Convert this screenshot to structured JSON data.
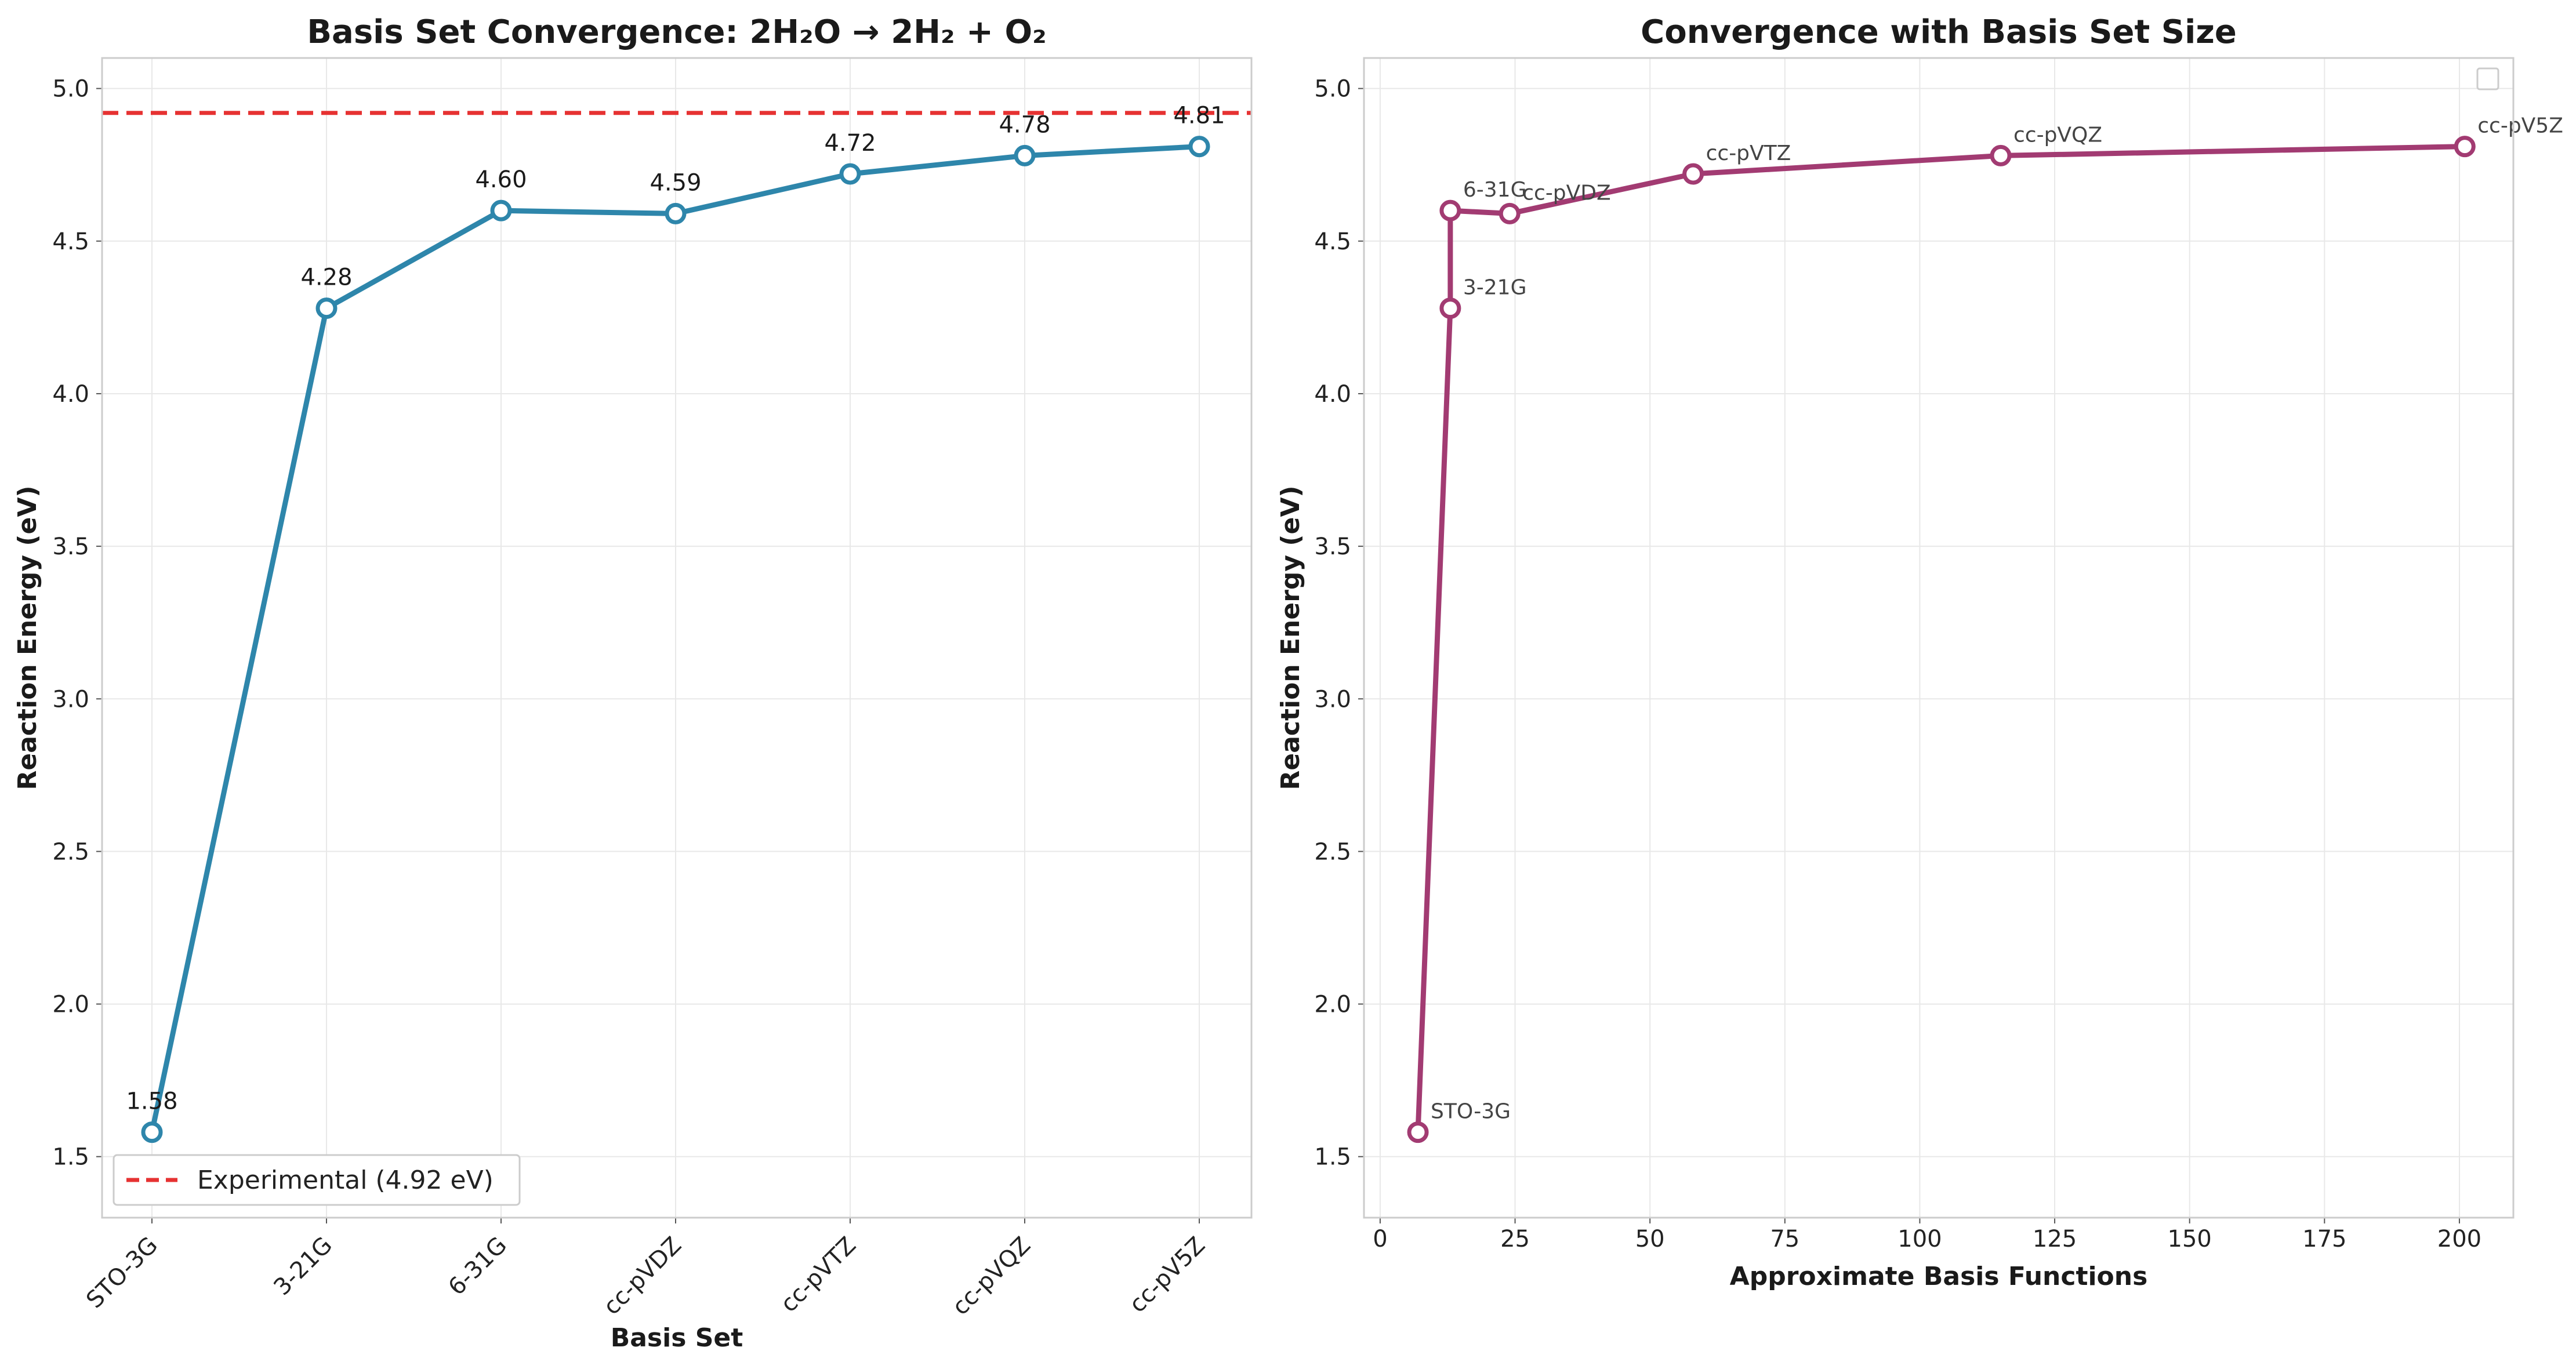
{
  "colors": {
    "left_series": "#2e86ab",
    "right_series": "#a23b72",
    "experimental": "#e63232",
    "grid": "#e8e8e8",
    "spine": "#cccccc"
  },
  "chart_data": [
    {
      "type": "line",
      "title": "Basis Set Convergence: 2H₂O → 2H₂ + O₂",
      "xlabel": "Basis Set",
      "ylabel": "Reaction Energy (eV)",
      "categories": [
        "STO-3G",
        "3-21G",
        "6-31G",
        "cc-pVDZ",
        "cc-pVTZ",
        "cc-pVQZ",
        "cc-pV5Z"
      ],
      "values": [
        1.58,
        4.28,
        4.6,
        4.59,
        4.72,
        4.78,
        4.81
      ],
      "data_labels": [
        "1.58",
        "4.28",
        "4.60",
        "4.59",
        "4.72",
        "4.78",
        "4.81"
      ],
      "ylim": [
        1.3,
        5.1
      ],
      "yticks": [
        1.5,
        2.0,
        2.5,
        3.0,
        3.5,
        4.0,
        4.5,
        5.0
      ],
      "ytick_labels": [
        "1.5",
        "2.0",
        "2.5",
        "3.0",
        "3.5",
        "4.0",
        "4.5",
        "5.0"
      ],
      "reference_line": {
        "value": 4.92,
        "label": "Experimental (4.92 eV)"
      },
      "legend_position": "lower-left",
      "grid": true
    },
    {
      "type": "line",
      "title": "Convergence with Basis Set Size",
      "xlabel": "Approximate Basis Functions",
      "ylabel": "Reaction Energy (eV)",
      "points": [
        {
          "label": "STO-3G",
          "x": 7,
          "y": 1.58
        },
        {
          "label": "3-21G",
          "x": 13,
          "y": 4.28
        },
        {
          "label": "6-31G",
          "x": 13,
          "y": 4.6
        },
        {
          "label": "cc-pVDZ",
          "x": 24,
          "y": 4.59
        },
        {
          "label": "cc-pVTZ",
          "x": 58,
          "y": 4.72
        },
        {
          "label": "cc-pVQZ",
          "x": 115,
          "y": 4.78
        },
        {
          "label": "cc-pV5Z",
          "x": 201,
          "y": 4.81
        }
      ],
      "xlim": [
        -3,
        210
      ],
      "ylim": [
        1.3,
        5.1
      ],
      "xticks": [
        0,
        25,
        50,
        75,
        100,
        125,
        150,
        175,
        200
      ],
      "xtick_labels": [
        "0",
        "25",
        "50",
        "75",
        "100",
        "125",
        "150",
        "175",
        "200"
      ],
      "yticks": [
        1.5,
        2.0,
        2.5,
        3.0,
        3.5,
        4.0,
        4.5,
        5.0
      ],
      "ytick_labels": [
        "1.5",
        "2.0",
        "2.5",
        "3.0",
        "3.5",
        "4.0",
        "4.5",
        "5.0"
      ],
      "legend_position": "upper-right",
      "grid": true
    }
  ]
}
